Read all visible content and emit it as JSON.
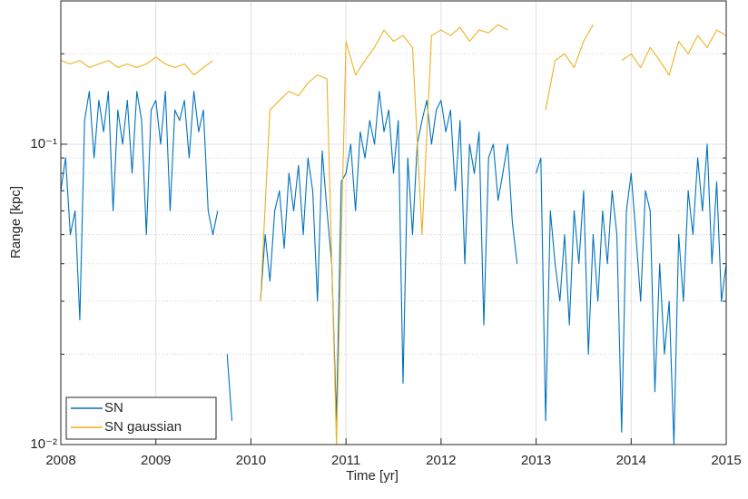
{
  "chart_data": {
    "type": "line",
    "x_label": "Time [yr]",
    "y_label": "Range [kpc]",
    "xlim": [
      2008,
      2015
    ],
    "xticks": [
      2008,
      2009,
      2010,
      2011,
      2012,
      2013,
      2014,
      2015
    ],
    "ylim": [
      0.01,
      0.3
    ],
    "yticks": [
      {
        "value": 0.01,
        "label": "10⁻²"
      },
      {
        "value": 0.1,
        "label": "10⁻¹"
      }
    ],
    "y_scale": "log",
    "grid": true,
    "minor_grid": true,
    "legend": "lower left",
    "series": [
      {
        "name": "SN",
        "color": "#0072bd",
        "x": [
          2008.0,
          2008.05,
          2008.1,
          2008.15,
          2008.2,
          2008.25,
          2008.3,
          2008.35,
          2008.4,
          2008.45,
          2008.5,
          2008.55,
          2008.6,
          2008.65,
          2008.7,
          2008.75,
          2008.8,
          2008.85,
          2008.9,
          2008.95,
          2009.0,
          2009.05,
          2009.1,
          2009.15,
          2009.2,
          2009.25,
          2009.3,
          2009.35,
          2009.4,
          2009.45,
          2009.5,
          2009.55,
          2009.6,
          2009.65,
          2009.7,
          2009.75,
          2009.8,
          2009.85,
          2009.9,
          2009.95,
          2010.0,
          2010.05,
          2010.1,
          2010.15,
          2010.2,
          2010.25,
          2010.3,
          2010.35,
          2010.4,
          2010.45,
          2010.5,
          2010.55,
          2010.6,
          2010.65,
          2010.7,
          2010.75,
          2010.8,
          2010.85,
          2010.9,
          2010.95,
          2011.0,
          2011.05,
          2011.1,
          2011.15,
          2011.2,
          2011.25,
          2011.3,
          2011.35,
          2011.4,
          2011.45,
          2011.5,
          2011.55,
          2011.6,
          2011.65,
          2011.7,
          2011.75,
          2011.8,
          2011.85,
          2011.9,
          2011.95,
          2012.0,
          2012.05,
          2012.1,
          2012.15,
          2012.2,
          2012.25,
          2012.3,
          2012.35,
          2012.4,
          2012.45,
          2012.5,
          2012.55,
          2012.6,
          2012.65,
          2012.7,
          2012.75,
          2012.8,
          2012.85,
          2012.9,
          2012.95,
          2013.0,
          2013.05,
          2013.1,
          2013.15,
          2013.2,
          2013.25,
          2013.3,
          2013.35,
          2013.4,
          2013.45,
          2013.5,
          2013.55,
          2013.6,
          2013.65,
          2013.7,
          2013.75,
          2013.8,
          2013.85,
          2013.9,
          2013.95,
          2014.0,
          2014.05,
          2014.1,
          2014.15,
          2014.2,
          2014.25,
          2014.3,
          2014.35,
          2014.4,
          2014.45,
          2014.5,
          2014.55,
          2014.6,
          2014.65,
          2014.7,
          2014.75,
          2014.8,
          2014.85,
          2014.9,
          2014.95,
          2015.0
        ],
        "values": [
          0.07,
          0.09,
          0.05,
          0.06,
          0.026,
          0.12,
          0.15,
          0.09,
          0.14,
          0.11,
          0.15,
          0.06,
          0.13,
          0.1,
          0.14,
          0.08,
          0.15,
          0.12,
          0.05,
          0.13,
          0.14,
          0.1,
          0.15,
          0.06,
          0.13,
          0.12,
          0.14,
          0.09,
          0.15,
          0.11,
          0.13,
          0.06,
          0.05,
          0.06,
          null,
          0.02,
          0.012,
          null,
          null,
          null,
          null,
          null,
          0.03,
          0.05,
          0.035,
          0.06,
          0.07,
          0.045,
          0.08,
          0.06,
          0.085,
          0.05,
          0.09,
          0.07,
          0.03,
          0.095,
          0.06,
          0.04,
          0.012,
          0.075,
          0.08,
          0.1,
          0.06,
          0.11,
          0.09,
          0.12,
          0.1,
          0.15,
          0.11,
          0.13,
          0.08,
          0.12,
          0.016,
          0.09,
          0.05,
          0.1,
          0.12,
          0.14,
          0.1,
          0.13,
          0.14,
          0.11,
          0.13,
          0.07,
          0.12,
          0.04,
          0.1,
          0.08,
          0.11,
          0.025,
          0.09,
          0.1,
          0.065,
          0.08,
          0.1,
          0.055,
          0.04,
          null,
          null,
          null,
          0.08,
          0.09,
          0.012,
          0.06,
          0.04,
          0.03,
          0.05,
          0.025,
          0.06,
          0.04,
          0.07,
          0.02,
          0.05,
          0.03,
          0.06,
          0.04,
          0.07,
          0.05,
          0.011,
          0.06,
          0.08,
          0.05,
          0.03,
          0.07,
          0.06,
          0.015,
          0.04,
          0.02,
          0.03,
          0.01,
          0.05,
          0.03,
          0.07,
          0.05,
          0.09,
          0.06,
          0.1,
          0.04,
          0.075,
          0.03,
          0.04
        ]
      },
      {
        "name": "SN gaussian",
        "color": "#edb120",
        "x": [
          2008.0,
          2008.1,
          2008.2,
          2008.3,
          2008.4,
          2008.5,
          2008.6,
          2008.7,
          2008.8,
          2008.9,
          2009.0,
          2009.1,
          2009.2,
          2009.3,
          2009.4,
          2009.5,
          2009.6,
          2009.7,
          2009.8,
          2009.9,
          2010.0,
          2010.1,
          2010.2,
          2010.3,
          2010.4,
          2010.5,
          2010.6,
          2010.7,
          2010.8,
          2010.9,
          2011.0,
          2011.1,
          2011.2,
          2011.3,
          2011.4,
          2011.5,
          2011.6,
          2011.7,
          2011.8,
          2011.9,
          2012.0,
          2012.1,
          2012.2,
          2012.3,
          2012.4,
          2012.5,
          2012.6,
          2012.7,
          2012.8,
          2012.9,
          2013.0,
          2013.1,
          2013.2,
          2013.3,
          2013.4,
          2013.5,
          2013.6,
          2013.7,
          2013.8,
          2013.9,
          2014.0,
          2014.1,
          2014.2,
          2014.3,
          2014.4,
          2014.5,
          2014.6,
          2014.7,
          2014.8,
          2014.9,
          2015.0
        ],
        "values": [
          0.19,
          0.185,
          0.19,
          0.18,
          0.185,
          0.19,
          0.18,
          0.185,
          0.18,
          0.185,
          0.195,
          0.185,
          0.18,
          0.185,
          0.17,
          0.18,
          0.19,
          null,
          0.155,
          null,
          null,
          0.03,
          0.13,
          0.14,
          0.15,
          0.145,
          0.16,
          0.17,
          0.165,
          0.01,
          0.22,
          0.17,
          0.19,
          0.21,
          0.24,
          0.22,
          0.23,
          0.21,
          0.05,
          0.23,
          0.24,
          0.23,
          0.245,
          0.22,
          0.24,
          0.235,
          0.25,
          0.24,
          null,
          null,
          null,
          0.13,
          0.19,
          0.2,
          0.18,
          0.22,
          0.25,
          null,
          null,
          0.19,
          0.2,
          0.18,
          0.21,
          0.19,
          0.17,
          0.22,
          0.2,
          0.23,
          0.21,
          0.24,
          0.23
        ]
      }
    ]
  }
}
